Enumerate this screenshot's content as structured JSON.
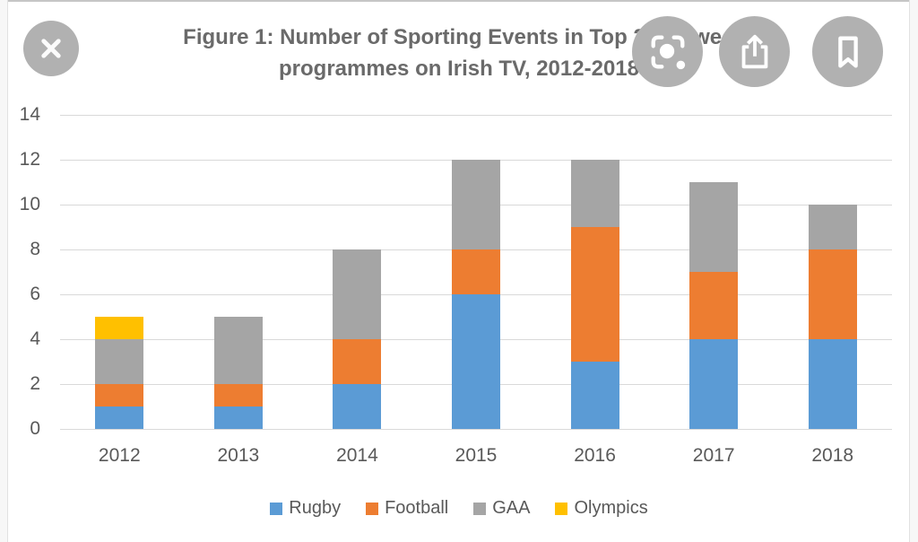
{
  "viewer": {
    "buttons": [
      {
        "name": "close",
        "icon": "close-icon"
      },
      {
        "name": "lens",
        "icon": "google-lens-icon"
      },
      {
        "name": "share",
        "icon": "share-icon"
      },
      {
        "name": "bookmark",
        "icon": "bookmark-icon"
      }
    ],
    "button_bg_color": "#b1b1b1",
    "icon_color": "#ffffff"
  },
  "chart_data": {
    "type": "bar",
    "stacked": true,
    "title": "Figure 1: Number of Sporting Events in Top 20 viewed programmes on Irish TV, 2012-2018",
    "title_lines": [
      "Figure 1: Number of Sporting Events in Top 20 viewed",
      "programmes on Irish TV, 2012-2018"
    ],
    "categories": [
      "2012",
      "2013",
      "2014",
      "2015",
      "2016",
      "2017",
      "2018"
    ],
    "series": [
      {
        "name": "Rugby",
        "color": "#5B9BD5",
        "values": [
          1,
          1,
          2,
          6,
          3,
          4,
          4
        ]
      },
      {
        "name": "Football",
        "color": "#ED7D31",
        "values": [
          1,
          1,
          2,
          2,
          6,
          3,
          4
        ]
      },
      {
        "name": "GAA",
        "color": "#A5A5A5",
        "values": [
          2,
          3,
          4,
          4,
          3,
          4,
          2
        ]
      },
      {
        "name": "Olympics",
        "color": "#FFC000",
        "values": [
          1,
          0,
          0,
          0,
          0,
          0,
          0
        ]
      }
    ],
    "totals": [
      5,
      5,
      8,
      12,
      12,
      11,
      10
    ],
    "xlabel": "",
    "ylabel": "",
    "ylim": [
      0,
      14
    ],
    "ytick_step": 2,
    "yticks": [
      0,
      2,
      4,
      6,
      8,
      10,
      12,
      14
    ],
    "grid": true,
    "gridline_color": "#d9d9d9",
    "text_color": "#595959",
    "title_color": "#6a6a6a",
    "legend_position": "bottom"
  }
}
